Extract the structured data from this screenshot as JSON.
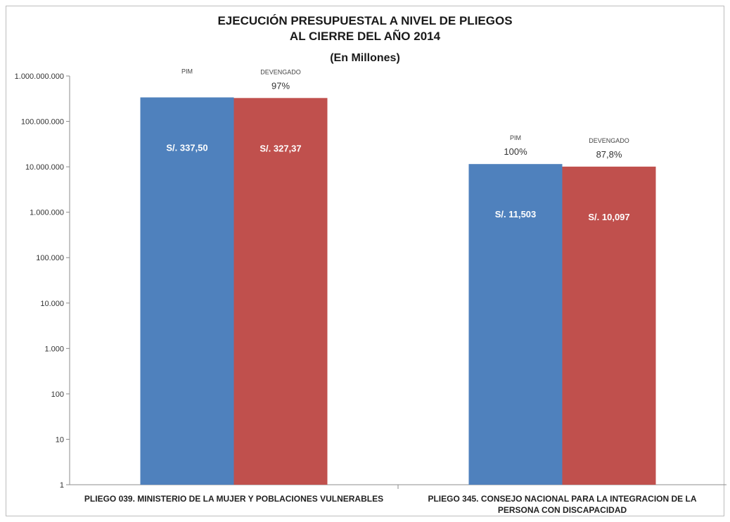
{
  "chart_data": {
    "type": "bar",
    "title": [
      "EJECUCIÓN PRESUPUESTAL A NIVEL DE PLIEGOS",
      "AL CIERRE DEL AÑO 2014",
      "(En Millones)"
    ],
    "yscale": "log",
    "ylim": [
      1,
      1000000000
    ],
    "yticks": [
      "1",
      "10",
      "100",
      "1.000",
      "10.000",
      "100.000",
      "1.000.000",
      "10.000.000",
      "100.000.000",
      "1.000.000.000"
    ],
    "grid": false,
    "categories": [
      [
        "PLIEGO 039. MINISTERIO DE LA MUJER Y POBLACIONES VULNERABLES"
      ],
      [
        "PLIEGO 345. CONSEJO NACIONAL PARA LA INTEGRACION DE LA",
        "PERSONA CON DISCAPACIDAD"
      ]
    ],
    "series": [
      {
        "name": "PIM",
        "color": "#4f81bd",
        "values": [
          337500000,
          11503000
        ],
        "value_labels": [
          "S/. 337,50",
          "S/. 11,503"
        ],
        "percent_labels": [
          "",
          "100%"
        ]
      },
      {
        "name": "DEVENGADO",
        "color": "#c0504d",
        "values": [
          327370000,
          10097000
        ],
        "value_labels": [
          "S/. 327,37",
          "S/. 10,097"
        ],
        "percent_labels": [
          "97%",
          "87,8%"
        ]
      }
    ]
  }
}
